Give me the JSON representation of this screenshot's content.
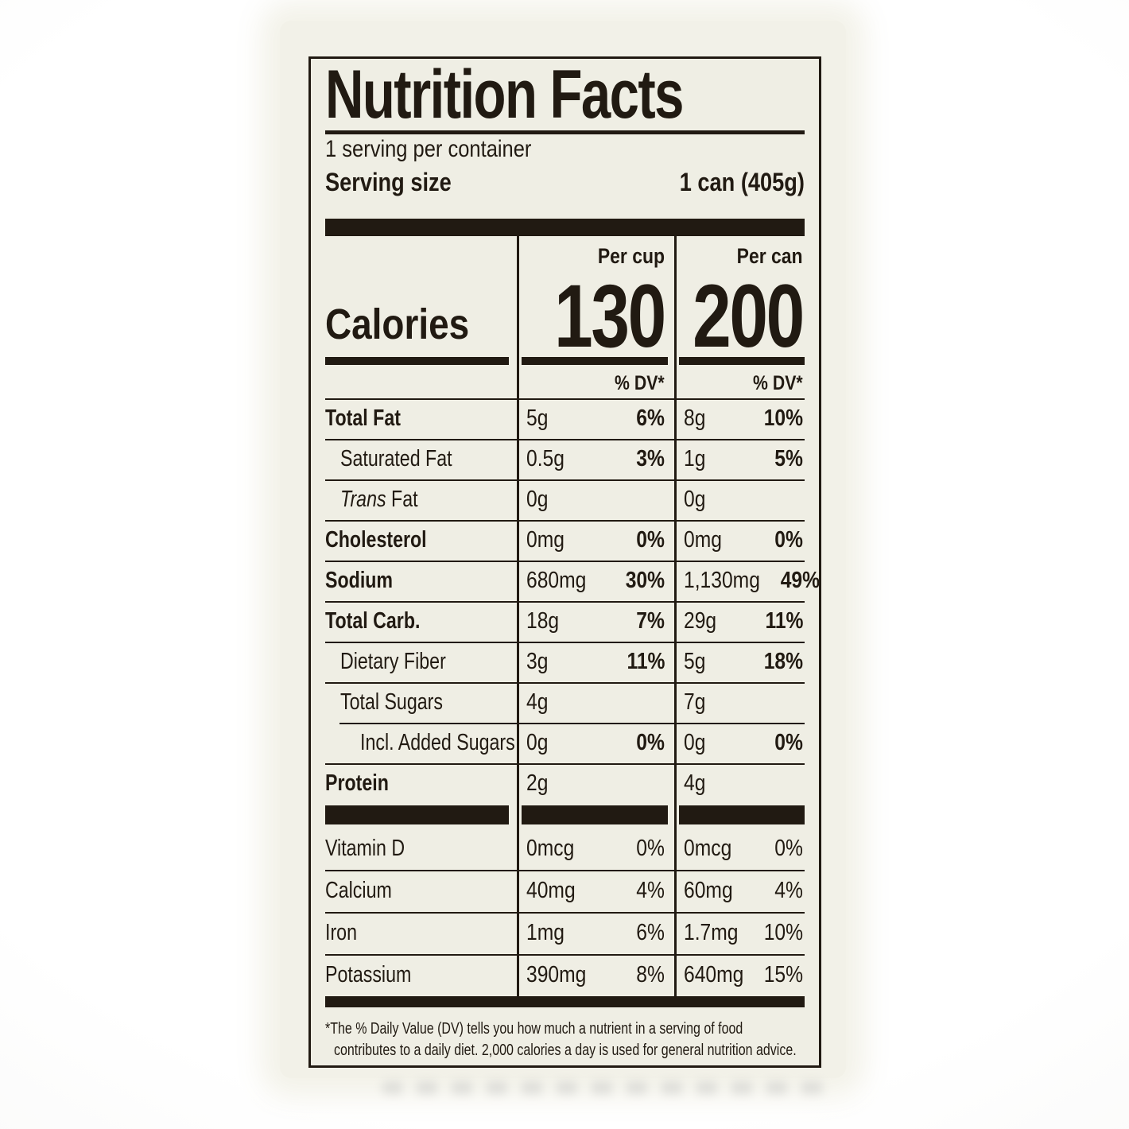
{
  "label": {
    "title": "Nutrition Facts",
    "servings_per_container": "1 serving per container",
    "serving_size_label": "Serving size",
    "serving_size_value": "1 can (405g)",
    "per_cup_header": "Per cup",
    "per_can_header": "Per can",
    "calories_label": "Calories",
    "calories_per_cup": "130",
    "calories_per_can": "200",
    "dv_header": "% DV*",
    "nutrients": [
      {
        "name": "Total Fat",
        "bold": true,
        "indent": 0,
        "cup_amt": "5g",
        "cup_dv": "6%",
        "can_amt": "8g",
        "can_dv": "10%"
      },
      {
        "name": "Saturated Fat",
        "bold": false,
        "indent": 1,
        "cup_amt": "0.5g",
        "cup_dv": "3%",
        "can_amt": "1g",
        "can_dv": "5%"
      },
      {
        "name": "Trans Fat",
        "bold": false,
        "indent": 1,
        "italic_first_word": true,
        "cup_amt": "0g",
        "cup_dv": "",
        "can_amt": "0g",
        "can_dv": ""
      },
      {
        "name": "Cholesterol",
        "bold": true,
        "indent": 0,
        "cup_amt": "0mg",
        "cup_dv": "0%",
        "can_amt": "0mg",
        "can_dv": "0%"
      },
      {
        "name": "Sodium",
        "bold": true,
        "indent": 0,
        "cup_amt": "680mg",
        "cup_dv": "30%",
        "can_amt": "1,130mg",
        "can_dv": "49%"
      },
      {
        "name": "Total Carb.",
        "bold": true,
        "indent": 0,
        "cup_amt": "18g",
        "cup_dv": "7%",
        "can_amt": "29g",
        "can_dv": "11%"
      },
      {
        "name": "Dietary Fiber",
        "bold": false,
        "indent": 1,
        "cup_amt": "3g",
        "cup_dv": "11%",
        "can_amt": "5g",
        "can_dv": "18%"
      },
      {
        "name": "Total Sugars",
        "bold": false,
        "indent": 1,
        "cup_amt": "4g",
        "cup_dv": "",
        "can_amt": "7g",
        "can_dv": ""
      },
      {
        "name": "Incl. Added Sugars",
        "bold": false,
        "indent": 2,
        "cup_amt": "0g",
        "cup_dv": "0%",
        "can_amt": "0g",
        "can_dv": "0%"
      },
      {
        "name": "Protein",
        "bold": true,
        "indent": 0,
        "cup_amt": "2g",
        "cup_dv": "",
        "can_amt": "4g",
        "can_dv": ""
      }
    ],
    "micronutrients": [
      {
        "name": "Vitamin D",
        "cup_amt": "0mcg",
        "cup_dv": "0%",
        "can_amt": "0mcg",
        "can_dv": "0%"
      },
      {
        "name": "Calcium",
        "cup_amt": "40mg",
        "cup_dv": "4%",
        "can_amt": "60mg",
        "can_dv": "4%"
      },
      {
        "name": "Iron",
        "cup_amt": "1mg",
        "cup_dv": "6%",
        "can_amt": "1.7mg",
        "can_dv": "10%"
      },
      {
        "name": "Potassium",
        "cup_amt": "390mg",
        "cup_dv": "8%",
        "can_amt": "640mg",
        "can_dv": "15%"
      }
    ],
    "footnote_lines": [
      "*The % Daily Value (DV) tells you how much a nutrient in a serving of food",
      "contributes to a daily diet. 2,000 calories a day is used for general nutrition advice."
    ],
    "ink_color": "#211a12",
    "paper_color": "#efeee4",
    "backdrop_color": "#f2f1e8"
  }
}
